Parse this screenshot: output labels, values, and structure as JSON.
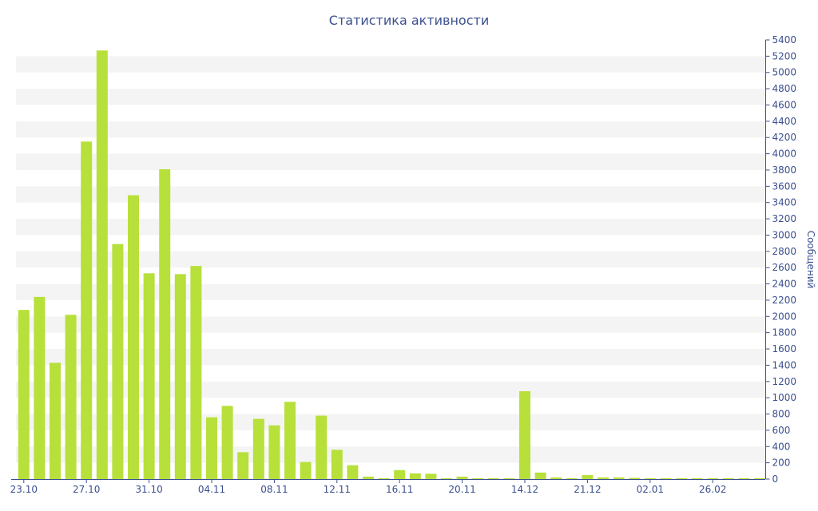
{
  "chart_data": {
    "type": "bar",
    "title": "Статистика активности",
    "ylabel": "Сообщений",
    "ylim": [
      0,
      5400
    ],
    "yticks": [
      0,
      200,
      400,
      600,
      800,
      1000,
      1200,
      1400,
      1600,
      1800,
      2000,
      2200,
      2400,
      2600,
      2800,
      3000,
      3200,
      3400,
      3600,
      3800,
      4000,
      4200,
      4400,
      4600,
      4800,
      5000,
      5200,
      5400
    ],
    "y_axis_position": "right",
    "grid": "alternating horizontal bands",
    "x_tick_labels": [
      {
        "label": "23.10",
        "index": 0
      },
      {
        "label": "27.10",
        "index": 4
      },
      {
        "label": "31.10",
        "index": 8
      },
      {
        "label": "04.11",
        "index": 12
      },
      {
        "label": "08.11",
        "index": 16
      },
      {
        "label": "12.11",
        "index": 20
      },
      {
        "label": "16.11",
        "index": 24
      },
      {
        "label": "20.11",
        "index": 28
      },
      {
        "label": "14.12",
        "index": 32
      },
      {
        "label": "21.12",
        "index": 36
      },
      {
        "label": "02.01",
        "index": 40
      },
      {
        "label": "26.02",
        "index": 44
      }
    ],
    "values": [
      2080,
      2240,
      1430,
      2020,
      4150,
      5270,
      2890,
      3490,
      2530,
      3810,
      2520,
      2620,
      760,
      900,
      330,
      740,
      660,
      950,
      210,
      780,
      360,
      170,
      30,
      10,
      110,
      70,
      65,
      10,
      30,
      10,
      5,
      10,
      1080,
      80,
      20,
      10,
      50,
      20,
      20,
      15,
      10,
      5,
      5,
      5,
      5,
      5,
      5,
      5
    ],
    "bar_color": "#b7e03b",
    "band_color": "#f4f4f4",
    "axis_color": "#3b4f8f"
  }
}
